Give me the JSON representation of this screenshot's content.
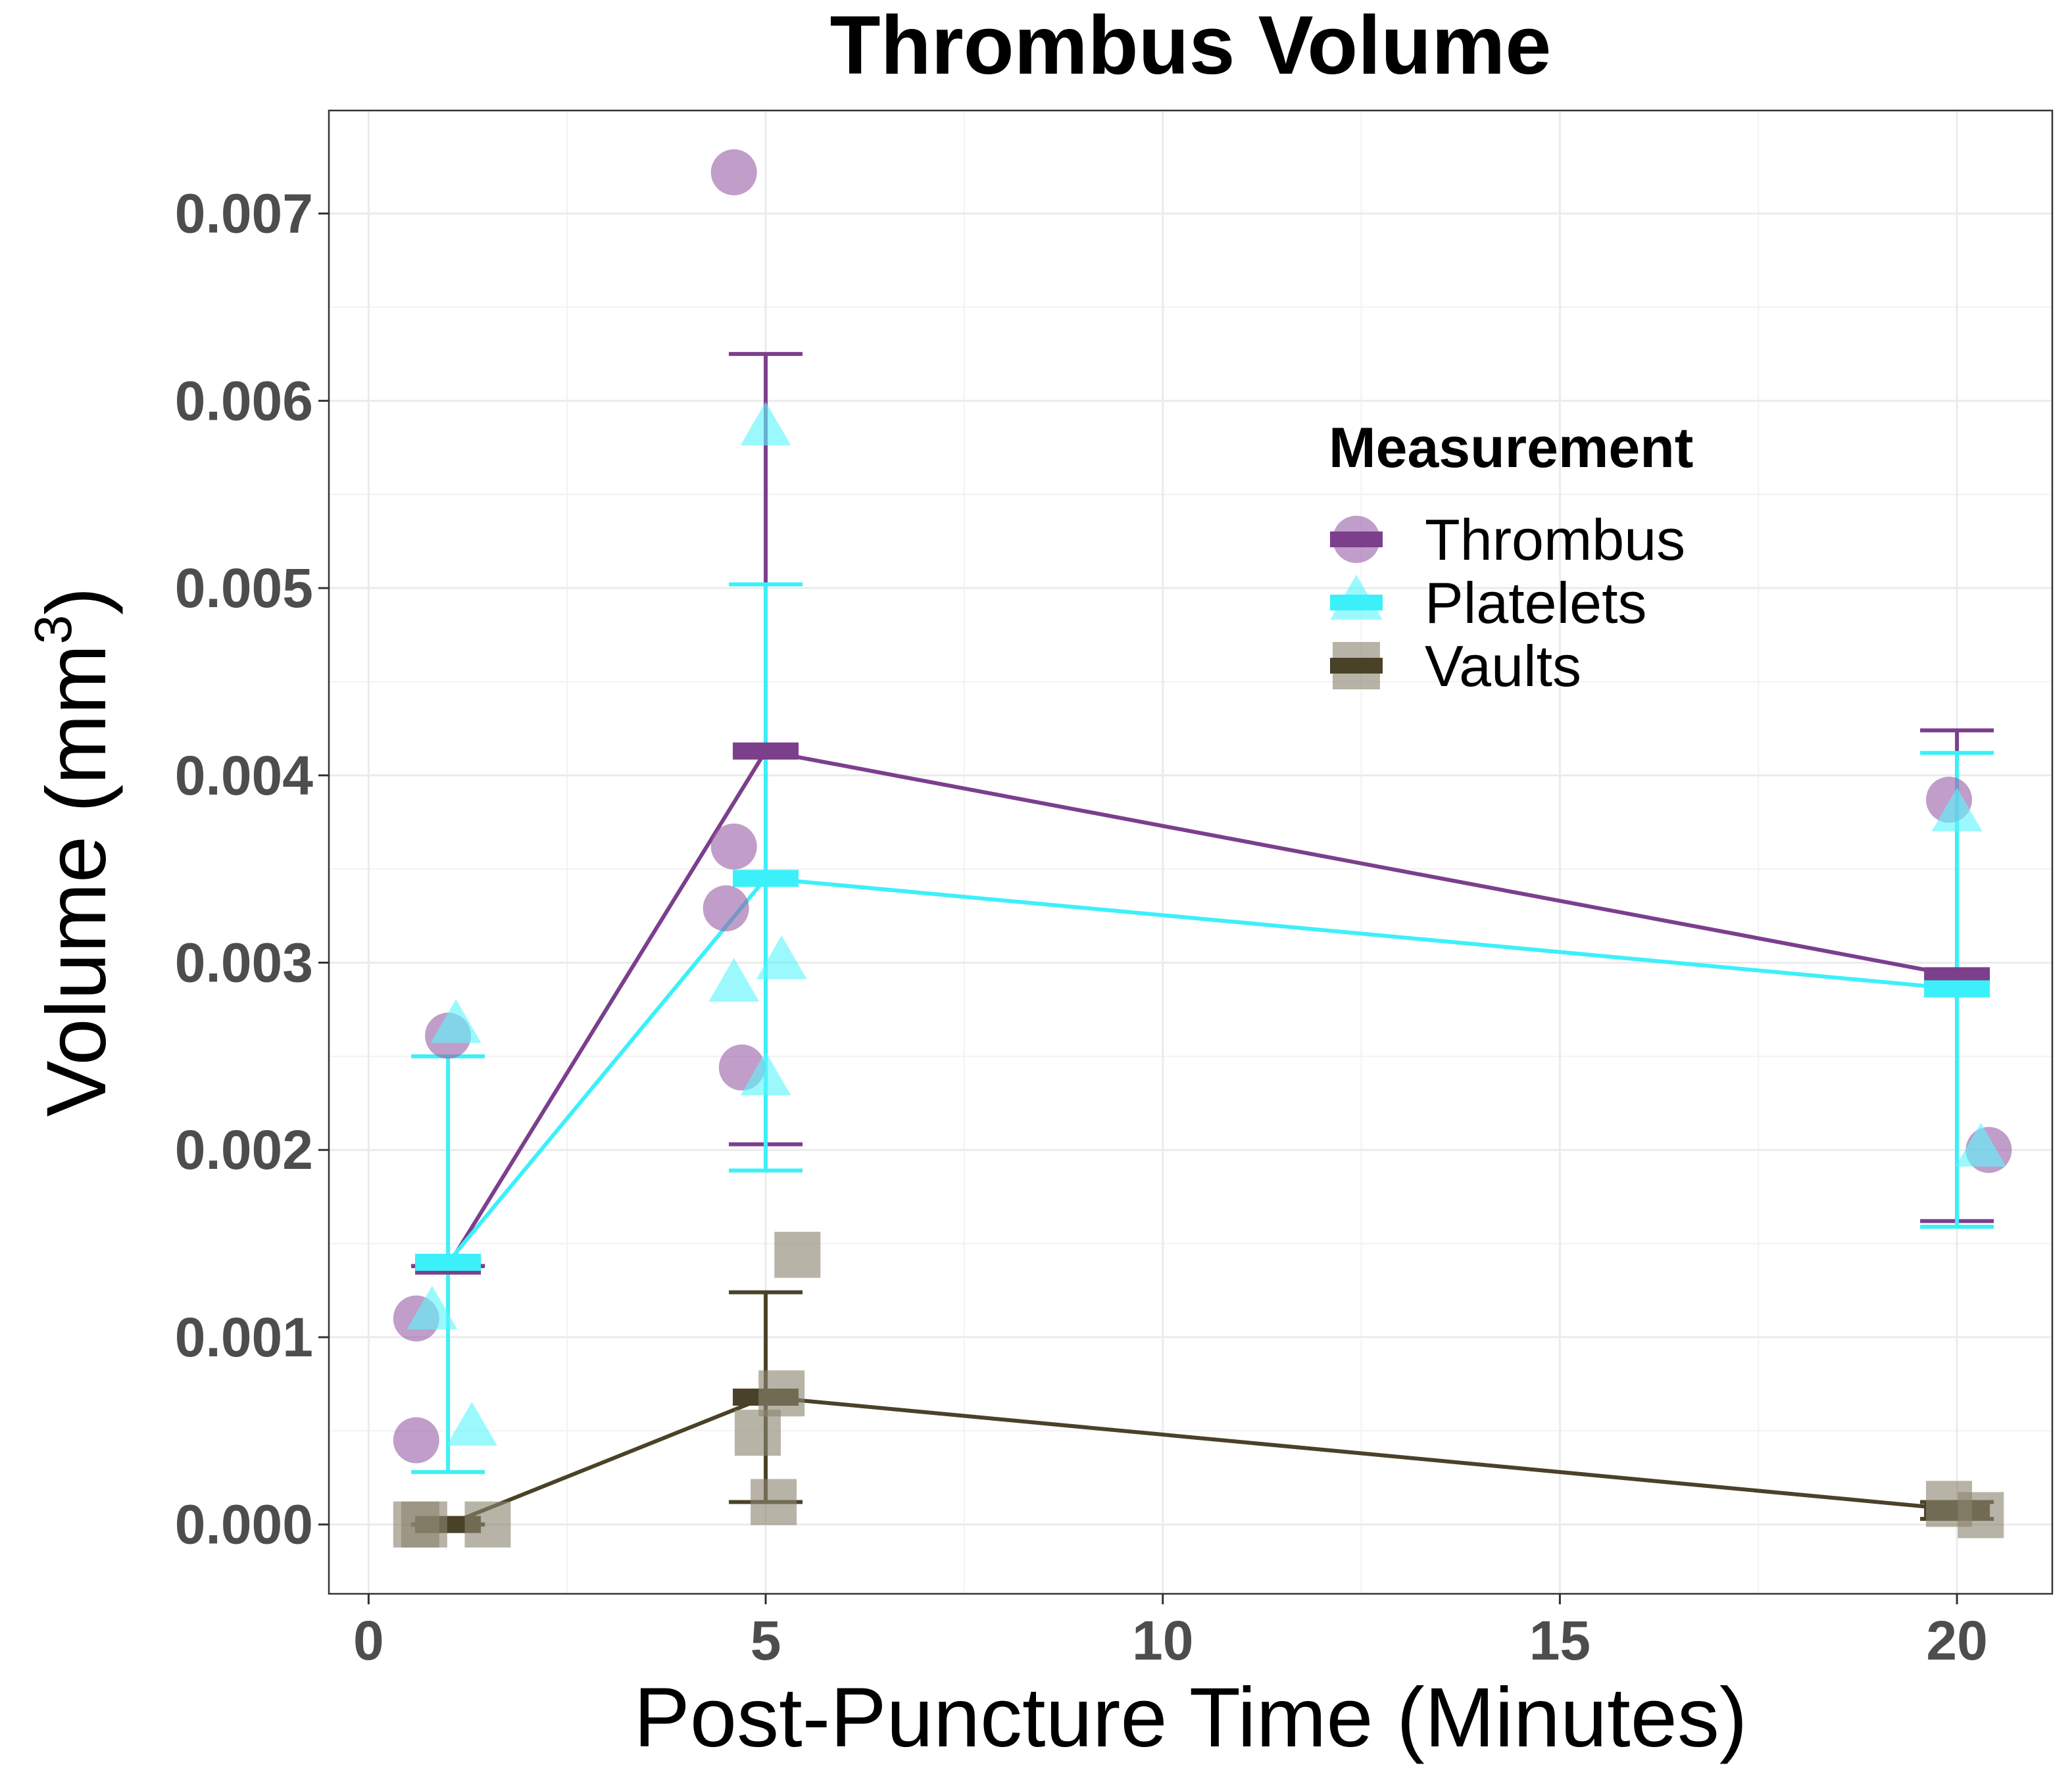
{
  "chart_data": {
    "type": "scatter",
    "title": "Thrombus Volume",
    "xlabel": "Post-Puncture Time (Minutes)",
    "ylabel": "Volume (mm",
    "ylabel_superscript": "3",
    "ylabel_close": ")",
    "xlim": [
      -0.5,
      21.2
    ],
    "ylim": [
      -0.00037,
      0.00755
    ],
    "x_ticks": [
      0,
      5,
      10,
      15,
      20
    ],
    "x_tick_labels": [
      "0",
      "5",
      "10",
      "15",
      "20"
    ],
    "y_ticks": [
      0,
      0.001,
      0.002,
      0.003,
      0.004,
      0.005,
      0.006,
      0.007
    ],
    "y_tick_labels": [
      "0.000",
      "0.001",
      "0.002",
      "0.003",
      "0.004",
      "0.005",
      "0.006",
      "0.007"
    ],
    "grid": true,
    "legend": {
      "title": "Measurement",
      "position": "top-right",
      "entries": [
        "Thrombus",
        "Platelets",
        "Vaults"
      ]
    },
    "series": [
      {
        "name": "Thrombus",
        "color": "#7b3f8c",
        "point_color": "#9a62a8",
        "shape": "circle",
        "mean": [
          {
            "x": 1,
            "y": 0.00138
          },
          {
            "x": 5,
            "y": 0.00413
          },
          {
            "x": 20,
            "y": 0.00293
          }
        ],
        "error": [
          {
            "x": 1,
            "low": 0.00138,
            "high": 0.00138
          },
          {
            "x": 5,
            "low": 0.00203,
            "high": 0.00625
          },
          {
            "x": 20,
            "low": 0.00162,
            "high": 0.00424
          }
        ],
        "points": [
          {
            "x": 0.6,
            "y": 0.00045
          },
          {
            "x": 0.6,
            "y": 0.0011
          },
          {
            "x": 1.0,
            "y": 0.00261
          },
          {
            "x": 4.6,
            "y": 0.00722
          },
          {
            "x": 4.6,
            "y": 0.00362
          },
          {
            "x": 4.5,
            "y": 0.00329
          },
          {
            "x": 4.7,
            "y": 0.00244
          },
          {
            "x": 19.9,
            "y": 0.00387
          },
          {
            "x": 20.4,
            "y": 0.002
          }
        ]
      },
      {
        "name": "Platelets",
        "color": "#3cf0fa",
        "point_color": "#5ef5fc",
        "shape": "triangle",
        "mean": [
          {
            "x": 1,
            "y": 0.0014
          },
          {
            "x": 5,
            "y": 0.00345
          },
          {
            "x": 20,
            "y": 0.00286
          }
        ],
        "error": [
          {
            "x": 1,
            "low": 0.00028,
            "high": 0.0025
          },
          {
            "x": 5,
            "low": 0.00189,
            "high": 0.00502
          },
          {
            "x": 20,
            "low": 0.00159,
            "high": 0.00412
          }
        ],
        "points": [
          {
            "x": 0.8,
            "y": 0.00113
          },
          {
            "x": 1.1,
            "y": 0.00266
          },
          {
            "x": 1.3,
            "y": 0.00051
          },
          {
            "x": 5.0,
            "y": 0.00585
          },
          {
            "x": 4.6,
            "y": 0.00288
          },
          {
            "x": 5.2,
            "y": 0.003
          },
          {
            "x": 5.0,
            "y": 0.00238
          },
          {
            "x": 20.0,
            "y": 0.00379
          },
          {
            "x": 20.3,
            "y": 0.002
          }
        ]
      },
      {
        "name": "Vaults",
        "color": "#4a4228",
        "point_color": "#8a8470",
        "shape": "square",
        "mean": [
          {
            "x": 1,
            "y": 0.0
          },
          {
            "x": 5,
            "y": 0.00068
          },
          {
            "x": 20,
            "y": 8e-05
          }
        ],
        "error": [
          {
            "x": 1,
            "low": 0.0,
            "high": 0.0
          },
          {
            "x": 5,
            "low": 0.00012,
            "high": 0.00124
          },
          {
            "x": 20,
            "low": 3e-05,
            "high": 0.00012
          }
        ],
        "points": [
          {
            "x": 0.6,
            "y": 0.0
          },
          {
            "x": 0.7,
            "y": 0.0
          },
          {
            "x": 1.5,
            "y": 0.0
          },
          {
            "x": 5.4,
            "y": 0.00144
          },
          {
            "x": 5.2,
            "y": 0.0007
          },
          {
            "x": 4.9,
            "y": 0.00049
          },
          {
            "x": 5.1,
            "y": 0.00012
          },
          {
            "x": 19.9,
            "y": 0.00011
          },
          {
            "x": 20.3,
            "y": 5e-05
          }
        ]
      }
    ]
  }
}
